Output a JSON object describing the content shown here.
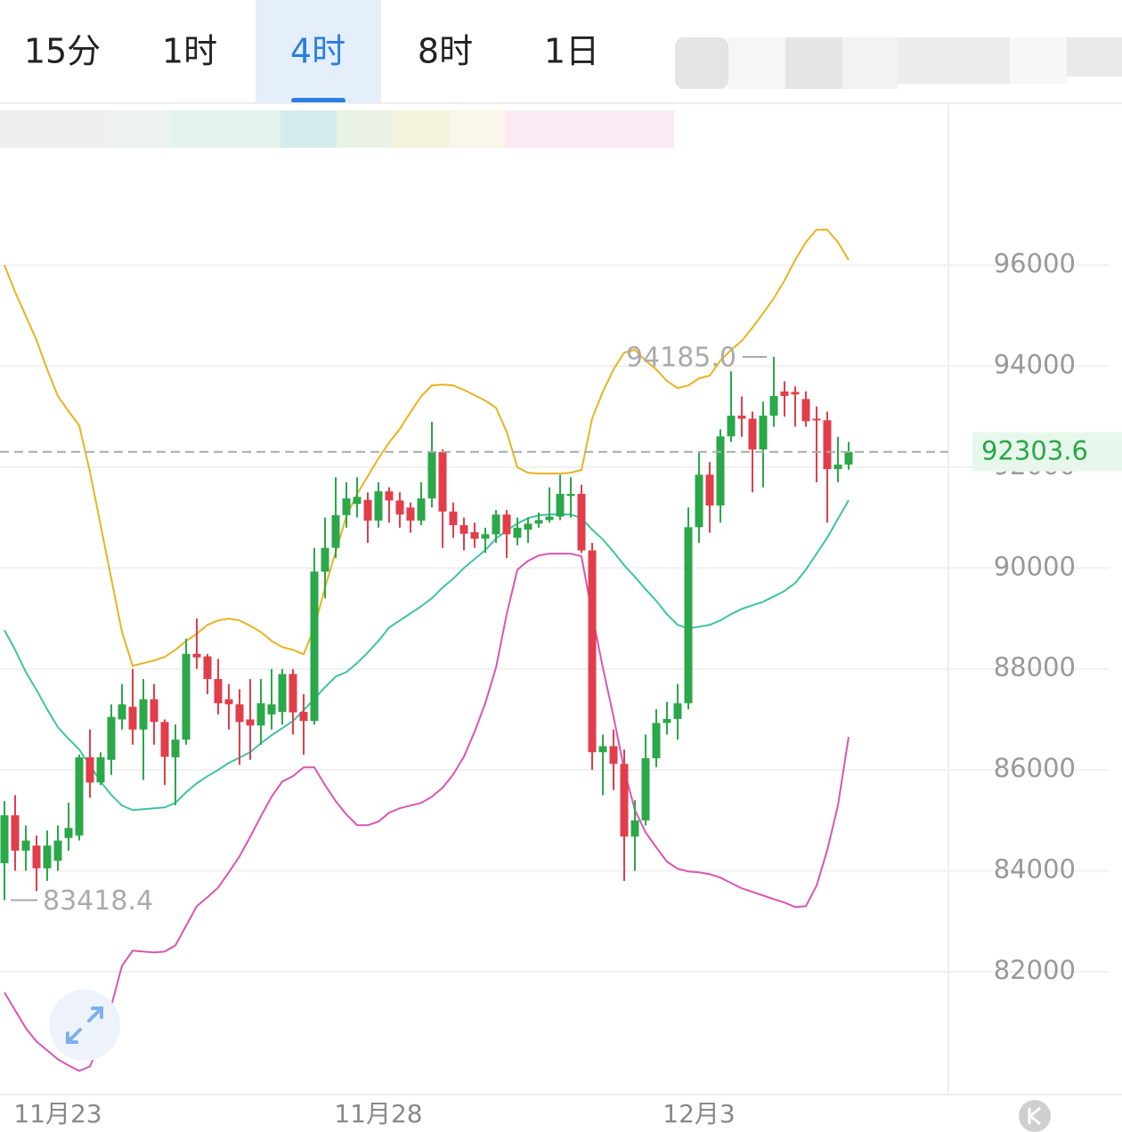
{
  "tabs": [
    "15分",
    "1时",
    "4时",
    "8时",
    "1日"
  ],
  "chart_data": {
    "type": "candlestick",
    "categories": [
      null,
      null,
      null,
      null,
      null,
      "11月23",
      null,
      null,
      null,
      null,
      null,
      null,
      null,
      null,
      null,
      null,
      null,
      null,
      null,
      null,
      null,
      null,
      null,
      null,
      null,
      null,
      null,
      null,
      null,
      null,
      null,
      null,
      null,
      null,
      null,
      "11月28",
      null,
      null,
      null,
      null,
      null,
      null,
      null,
      null,
      null,
      null,
      null,
      null,
      null,
      null,
      null,
      null,
      null,
      null,
      null,
      null,
      null,
      null,
      null,
      null,
      null,
      null,
      null,
      null,
      null,
      "12月3",
      null,
      null,
      null,
      null,
      null,
      null,
      null,
      null,
      null,
      null,
      null,
      null,
      null,
      null
    ],
    "open": [
      84150,
      85100,
      84400,
      84500,
      84050,
      84200,
      84650,
      84700,
      86250,
      85750,
      86200,
      87000,
      87250,
      86800,
      87400,
      86950,
      86250,
      86600,
      88300,
      88250,
      87800,
      87400,
      87300,
      87000,
      86880,
      87100,
      87150,
      87900,
      87150,
      86970,
      89930,
      90400,
      91050,
      91270,
      91350,
      90940,
      91520,
      91340,
      91200,
      90940,
      91380,
      92300,
      91120,
      90850,
      90710,
      90580,
      90670,
      91060,
      90600,
      90760,
      90880,
      90950,
      91020,
      91430,
      91470,
      90350,
      86350,
      86470,
      86120,
      84680,
      85000,
      86230,
      86930,
      87010,
      87320,
      90810,
      91850,
      91240,
      92610,
      93020,
      92960,
      92350,
      93020,
      93500,
      93490,
      93350,
      92960,
      92930,
      91960,
      92050
    ],
    "high": [
      85380,
      85500,
      84900,
      84700,
      84800,
      84900,
      85350,
      86300,
      86800,
      86350,
      87300,
      87700,
      88000,
      87800,
      87700,
      87000,
      86900,
      88600,
      89000,
      88300,
      88200,
      87700,
      87600,
      87800,
      87800,
      88000,
      88000,
      88000,
      87500,
      90400,
      91000,
      91800,
      91700,
      91800,
      91500,
      91700,
      91600,
      91500,
      91300,
      91700,
      92900,
      92350,
      91300,
      91000,
      90900,
      90800,
      91150,
      91150,
      91000,
      91000,
      91100,
      91600,
      91850,
      91800,
      91650,
      90500,
      86700,
      86800,
      86400,
      85400,
      86700,
      87200,
      87350,
      87700,
      91200,
      92300,
      92100,
      92750,
      93900,
      93400,
      93100,
      93300,
      94185,
      93700,
      93600,
      93500,
      93200,
      93100,
      92600,
      92500
    ],
    "low": [
      83418.4,
      84000,
      84000,
      83600,
      83800,
      84000,
      84400,
      84600,
      85450,
      85700,
      85900,
      86800,
      86500,
      85800,
      86500,
      85700,
      85300,
      86500,
      88000,
      87500,
      87100,
      86800,
      86100,
      86200,
      86500,
      86800,
      86900,
      86700,
      86300,
      86900,
      89400,
      90200,
      90800,
      91000,
      90500,
      90800,
      90900,
      90800,
      90700,
      90850,
      91200,
      90400,
      90600,
      90350,
      90400,
      90300,
      90500,
      90200,
      90450,
      90500,
      90800,
      90900,
      90950,
      91000,
      90300,
      86000,
      85500,
      85600,
      83800,
      84000,
      84900,
      86050,
      86700,
      86600,
      87200,
      90500,
      90700,
      90900,
      92500,
      92600,
      91500,
      91600,
      92800,
      93000,
      92800,
      92800,
      91700,
      90900,
      91700,
      91950
    ],
    "close": [
      85100,
      84400,
      84600,
      84050,
      84500,
      84600,
      84850,
      86250,
      85750,
      86250,
      87050,
      87300,
      86800,
      87400,
      86950,
      86260,
      86600,
      88300,
      88230,
      87800,
      87320,
      87300,
      86950,
      86880,
      87320,
      87300,
      87900,
      87140,
      86970,
      89930,
      90400,
      91050,
      91380,
      91410,
      90940,
      91520,
      91340,
      91060,
      90940,
      91380,
      92300,
      91120,
      90850,
      90680,
      90580,
      90670,
      91060,
      90670,
      90800,
      90880,
      90950,
      91020,
      91470,
      91470,
      90350,
      86350,
      86470,
      86120,
      84680,
      85000,
      86230,
      86930,
      87010,
      87320,
      90810,
      91850,
      91240,
      92610,
      93020,
      92960,
      92350,
      93020,
      93410,
      93410,
      93440,
      92910,
      92930,
      91960,
      92050,
      92303.6
    ],
    "up_color": "#2aa84a",
    "down_color": "#e23d4b",
    "lines": [
      {
        "color": "#e8b320",
        "values": [
          96000,
          95471,
          94995,
          94518,
          93936,
          93407,
          93107,
          92825,
          91907,
          90849,
          89791,
          88732,
          88062,
          88115,
          88168,
          88238,
          88380,
          88556,
          88697,
          88874,
          88962,
          88997,
          88962,
          88856,
          88732,
          88556,
          88432,
          88380,
          88291,
          88821,
          89614,
          90320,
          91026,
          91467,
          91819,
          92172,
          92490,
          92754,
          93089,
          93407,
          93619,
          93636,
          93619,
          93530,
          93425,
          93319,
          93178,
          92701,
          91996,
          91890,
          91872,
          91872,
          91872,
          91890,
          91943,
          92966,
          93495,
          93936,
          94271,
          94324,
          94112,
          93936,
          93707,
          93566,
          93619,
          93760,
          93813,
          94112,
          94324,
          94501,
          94765,
          95048,
          95347,
          95700,
          96106,
          96459,
          96706,
          96706,
          96459,
          96106
        ]
      },
      {
        "color": "#3cc4a4",
        "values": [
          88768,
          88380,
          87939,
          87586,
          87198,
          86845,
          86616,
          86404,
          86086,
          85769,
          85504,
          85293,
          85204,
          85222,
          85240,
          85257,
          85346,
          85557,
          85734,
          85875,
          86000,
          86139,
          86245,
          86351,
          86527,
          86686,
          86827,
          86968,
          87180,
          87409,
          87639,
          87850,
          87939,
          88115,
          88327,
          88556,
          88821,
          88962,
          89103,
          89244,
          89403,
          89614,
          89791,
          90002,
          90179,
          90355,
          90585,
          90743,
          90884,
          90990,
          91043,
          91061,
          91061,
          91061,
          90990,
          90761,
          90567,
          90320,
          90055,
          89826,
          89579,
          89350,
          89085,
          88874,
          88803,
          88838,
          88874,
          88962,
          89085,
          89191,
          89262,
          89332,
          89438,
          89544,
          89703,
          89967,
          90285,
          90602,
          90973,
          91343
        ]
      },
      {
        "color": "#d955b2",
        "values": [
          81588,
          81235,
          80882,
          80618,
          80442,
          80265,
          80142,
          80036,
          80124,
          80618,
          81324,
          82117,
          82417,
          82399,
          82382,
          82399,
          82523,
          82911,
          83299,
          83476,
          83670,
          83970,
          84287,
          84675,
          85081,
          85469,
          85769,
          85875,
          86051,
          86051,
          85698,
          85381,
          85116,
          84904,
          84904,
          84975,
          85151,
          85240,
          85293,
          85346,
          85469,
          85646,
          85910,
          86263,
          86757,
          87321,
          88027,
          89085,
          89967,
          90143,
          90249,
          90285,
          90285,
          90285,
          90232,
          89085,
          88027,
          87057,
          86000,
          85204,
          84763,
          84463,
          84181,
          84040,
          83987,
          83970,
          83934,
          83864,
          83758,
          83652,
          83582,
          83511,
          83440,
          83370,
          83282,
          83299,
          83705,
          84411,
          85293,
          86651
        ]
      }
    ],
    "high_label": "94185.0",
    "low_label": "83418.4",
    "last_price": 92303.6,
    "ylim": [
      79600,
      99000
    ],
    "yticks": [
      82000,
      84000,
      86000,
      88000,
      90000,
      92000,
      94000,
      96000
    ],
    "grid": true
  }
}
